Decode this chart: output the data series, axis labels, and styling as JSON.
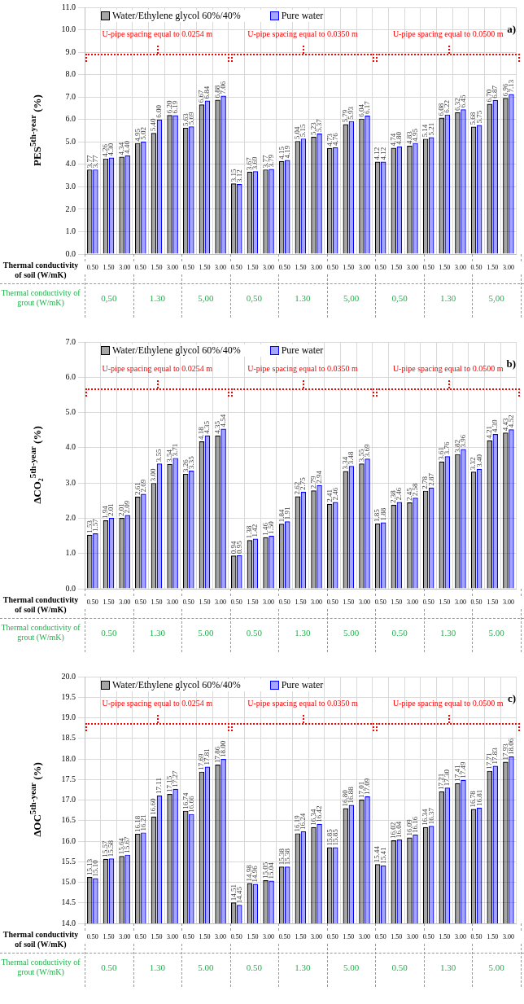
{
  "chart_data": [
    {
      "type": "bar",
      "ylabel": "PES$^{5th-year}$ (%)",
      "xlabel": "Thermal conductivity of soil (W/mK)",
      "categories": [
        "0.50",
        "1.50",
        "3.00",
        "0.50",
        "1.50",
        "3.00",
        "0.50",
        "1.50",
        "3.00",
        "0.50",
        "1.50",
        "3.00",
        "0.50",
        "1.50",
        "3.00",
        "0.50",
        "1.50",
        "3.00",
        "0.50",
        "1.50",
        "3.00",
        "0.50",
        "1.50",
        "3.00",
        "0.50",
        "1.50",
        "3.00"
      ],
      "series": [
        {
          "name": "Water/Ethylene glycol 60%/40%",
          "color": "#000000",
          "values": [
            3.77,
            4.26,
            4.34,
            4.95,
            5.4,
            6.2,
            5.63,
            6.67,
            6.88,
            3.15,
            3.67,
            3.77,
            4.15,
            5.04,
            5.23,
            4.73,
            5.79,
            6.04,
            4.12,
            4.74,
            4.83,
            5.14,
            6.08,
            6.32,
            5.68,
            6.7,
            6.96
          ],
          "value_labels": [
            "3.77",
            "4.26",
            "4.34",
            "4.95",
            "5.40",
            "6.20",
            "5.63",
            "6.67",
            "6.88",
            "3.15",
            "3.67",
            "3.77",
            "4.15",
            "5.04",
            "5.23",
            "4.73",
            "5.79",
            "6.04",
            "4.12",
            "4.74",
            "4.83",
            "5.14",
            "6.08",
            "6.32",
            "5.68",
            "6.70",
            "6.96"
          ]
        },
        {
          "name": "Pure water",
          "color": "#0000ff",
          "values": [
            3.77,
            4.3,
            4.4,
            5.02,
            6.0,
            6.19,
            5.69,
            6.84,
            7.06,
            3.12,
            3.69,
            3.79,
            4.19,
            5.15,
            5.37,
            4.76,
            5.93,
            6.17,
            4.12,
            4.8,
            4.95,
            5.21,
            6.22,
            6.45,
            5.75,
            6.87,
            7.13
          ],
          "value_labels": [
            "3.77",
            "4.30",
            "4.40",
            "5.02",
            "6.00",
            "6.19",
            "5.69",
            "6.84",
            "7.06",
            "3.12",
            "3.69",
            "3.79",
            "4.19",
            "5.15",
            "5.37",
            "4.76",
            "5.93",
            "6.17",
            "4.12",
            "4.80",
            "4.95",
            "5.21",
            "6.22",
            "6.45",
            "5.75",
            "6.87",
            "7.13"
          ]
        }
      ],
      "ylim": [
        0,
        11
      ],
      "yticks": [
        {
          "value": 0,
          "label": "0.0"
        },
        {
          "value": 1,
          "label": "1.0"
        },
        {
          "value": 2,
          "label": "2.0"
        },
        {
          "value": 3,
          "label": "3.0"
        },
        {
          "value": 4,
          "label": "4.0"
        },
        {
          "value": 5,
          "label": "5.0"
        },
        {
          "value": 6,
          "label": "6.0"
        },
        {
          "value": 7,
          "label": "7.0"
        },
        {
          "value": 8,
          "label": "8.0"
        },
        {
          "value": 9,
          "label": "9.0"
        },
        {
          "value": 10,
          "label": "10.0"
        },
        {
          "value": 11,
          "label": "11.0"
        }
      ],
      "grid": true,
      "legend": "top left",
      "annotations": [
        "a)",
        "Thermal conductivity of grout (W/mK)",
        "U-pipe spacing equal to 0.0254 m",
        "U-pipe spacing equal to 0.0350 m",
        "U-pipe spacing equal to 0.0500 m",
        "0,50",
        "1.30",
        "5,00",
        "0,50",
        "1.30",
        "5,00",
        "0,50",
        "1.30",
        "5,00"
      ]
    },
    {
      "type": "bar",
      "ylabel": "ΔCO₂$^{5th-year}$ (%)",
      "xlabel": "Thermal conductivity of soil (W/mK)",
      "categories": [
        "0.50",
        "1.50",
        "3.00",
        "0.50",
        "1.50",
        "3.00",
        "0.50",
        "1.50",
        "3.00",
        "0.50",
        "1.50",
        "3.00",
        "0.50",
        "1.50",
        "3.00",
        "0.50",
        "1.50",
        "3.00",
        "0.50",
        "1.50",
        "3.00",
        "0.50",
        "1.50",
        "3.00",
        "0.50",
        "1.50",
        "3.00"
      ],
      "series": [
        {
          "name": "Water/Ethylene glycol 60%/40%",
          "color": "#000000",
          "values": [
            1.53,
            1.94,
            2.01,
            2.61,
            3.0,
            3.54,
            3.26,
            4.18,
            4.35,
            0.94,
            1.38,
            1.46,
            1.84,
            2.62,
            2.79,
            2.41,
            3.34,
            3.55,
            1.85,
            2.38,
            2.45,
            2.78,
            3.61,
            3.82,
            3.32,
            4.21,
            4.43
          ],
          "value_labels": [
            "1.53",
            "1.94",
            "2.01",
            "2.61",
            "3.00",
            "3.54",
            "3.26",
            "4.18",
            "4.35",
            "0.94",
            "1.38",
            "1.46",
            "1.84",
            "2.62",
            "2.79",
            "2.41",
            "3.34",
            "3.55",
            "1.85",
            "2.38",
            "2.45",
            "2.78",
            "3.61",
            "3.82",
            "3.32",
            "4.21",
            "4.43"
          ]
        },
        {
          "name": "Pure water",
          "color": "#0000ff",
          "values": [
            1.57,
            2.01,
            2.09,
            2.69,
            3.55,
            3.71,
            3.35,
            4.35,
            4.54,
            0.95,
            1.42,
            1.5,
            1.91,
            2.75,
            2.94,
            2.46,
            3.48,
            3.69,
            1.88,
            2.46,
            2.58,
            2.87,
            3.76,
            3.96,
            3.4,
            4.39,
            4.52
          ],
          "value_labels": [
            "1.57",
            "2.01",
            "2.09",
            "2.69",
            "3.55",
            "3.71",
            "3.35",
            "4.35",
            "4.54",
            "0.95",
            "1.42",
            "1.50",
            "1.91",
            "2.75",
            "2.94",
            "2.46",
            "3.48",
            "3.69",
            "1.88",
            "2.46",
            "2.58",
            "2.87",
            "3.76",
            "3.96",
            "3.40",
            "4.39",
            "4.52"
          ]
        }
      ],
      "ylim": [
        0,
        7
      ],
      "yticks": [
        {
          "value": 0,
          "label": "0.0"
        },
        {
          "value": 1,
          "label": "1.0"
        },
        {
          "value": 2,
          "label": "2.0"
        },
        {
          "value": 3,
          "label": "3.0"
        },
        {
          "value": 4,
          "label": "4.0"
        },
        {
          "value": 5,
          "label": "5.0"
        },
        {
          "value": 6,
          "label": "6.0"
        },
        {
          "value": 7,
          "label": "7.0"
        }
      ],
      "grid": true,
      "legend": "top left",
      "annotations": [
        "b)",
        "Thermal conductivity of grout (W/mK)",
        "U-pipe spacing equal to 0.0254 m",
        "U-pipe spacing equal to 0.0350 m",
        "U-pipe spacing equal to 0.0500 m",
        "0.50",
        "1.30",
        "5.00",
        "0.50",
        "1.30",
        "5.00",
        "0.50",
        "1.30",
        "5.00"
      ]
    },
    {
      "type": "bar",
      "ylabel": "ΔOC$^{5th-year}$ (%)",
      "xlabel": "Thermal conductivity of soil (W/mK)",
      "categories": [
        "0.50",
        "1.50",
        "3.00",
        "0.50",
        "1.50",
        "3.00",
        "0.50",
        "1.50",
        "3.00",
        "0.50",
        "1.50",
        "3.00",
        "0.50",
        "1.50",
        "3.00",
        "0.50",
        "1.50",
        "3.00",
        "0.50",
        "1.50",
        "3.00",
        "0.50",
        "1.50",
        "3.00",
        "0.50",
        "1.50",
        "3.00"
      ],
      "series": [
        {
          "name": "Water/Ethylene glycol 60%/40%",
          "color": "#000000",
          "values": [
            15.13,
            15.57,
            15.64,
            16.18,
            16.6,
            17.15,
            16.74,
            17.69,
            17.86,
            14.51,
            14.98,
            15.05,
            15.38,
            16.19,
            16.34,
            15.85,
            16.8,
            17.01,
            15.44,
            16.02,
            16.09,
            16.34,
            17.21,
            17.41,
            16.78,
            17.71,
            17.93
          ],
          "value_labels": [
            "15.13",
            "15.57",
            "15.64",
            "16.18",
            "16.60",
            "17.15",
            "16.74",
            "17.69",
            "17.86",
            "14.51",
            "14.98",
            "15.05",
            "15.38",
            "16.19",
            "16.34",
            "15.85",
            "16.80",
            "17.01",
            "15.44",
            "16.02",
            "16.09",
            "16.34",
            "17.21",
            "17.41",
            "16.78",
            "17.71",
            "17.93"
          ]
        },
        {
          "name": "Pure water",
          "color": "#0000ff",
          "values": [
            15.1,
            15.58,
            15.67,
            16.21,
            17.11,
            17.27,
            16.66,
            17.81,
            18.0,
            14.45,
            14.96,
            15.04,
            15.38,
            16.24,
            16.42,
            15.85,
            16.88,
            17.09,
            15.41,
            16.04,
            16.16,
            16.37,
            17.3,
            17.49,
            16.81,
            17.83,
            18.06
          ],
          "value_labels": [
            "15.10",
            "15.58",
            "15.67",
            "16.21",
            "17.11",
            "17.27",
            "16.66",
            "17.81",
            "18.00",
            "14.45",
            "14.96",
            "15.04",
            "15.38",
            "16.24",
            "16.42",
            "15.85",
            "16.88",
            "17.09",
            "15.41",
            "16.04",
            "16.16",
            "16.37",
            "17.30",
            "17.49",
            "16.81",
            "17.83",
            "18.06"
          ]
        }
      ],
      "ylim": [
        14,
        20
      ],
      "yticks": [
        {
          "value": 14,
          "label": "14.0"
        },
        {
          "value": 14.5,
          "label": "14.5"
        },
        {
          "value": 15,
          "label": "15.0"
        },
        {
          "value": 15.5,
          "label": "15.5"
        },
        {
          "value": 16,
          "label": "16.0"
        },
        {
          "value": 16.5,
          "label": "16.5"
        },
        {
          "value": 17,
          "label": "17.0"
        },
        {
          "value": 17.5,
          "label": "17.5"
        },
        {
          "value": 18,
          "label": "18.0"
        },
        {
          "value": 18.5,
          "label": "18.5"
        },
        {
          "value": 19,
          "label": "19.0"
        },
        {
          "value": 19.5,
          "label": "19.5"
        },
        {
          "value": 20,
          "label": "20.0"
        }
      ],
      "grid": true,
      "legend": "top left",
      "annotations": [
        "c)",
        "Thermal conductivity of grout (W/mK)",
        "U-pipe spacing equal to 0.0254 m",
        "U-pipe spacing equal to 0.0350 m",
        "U-pipe spacing equal to 0.0500 m",
        "0.50",
        "1.30",
        "5.00",
        "0.50",
        "1.30",
        "5.00",
        "0.50",
        "1.30",
        "5.00"
      ]
    }
  ]
}
